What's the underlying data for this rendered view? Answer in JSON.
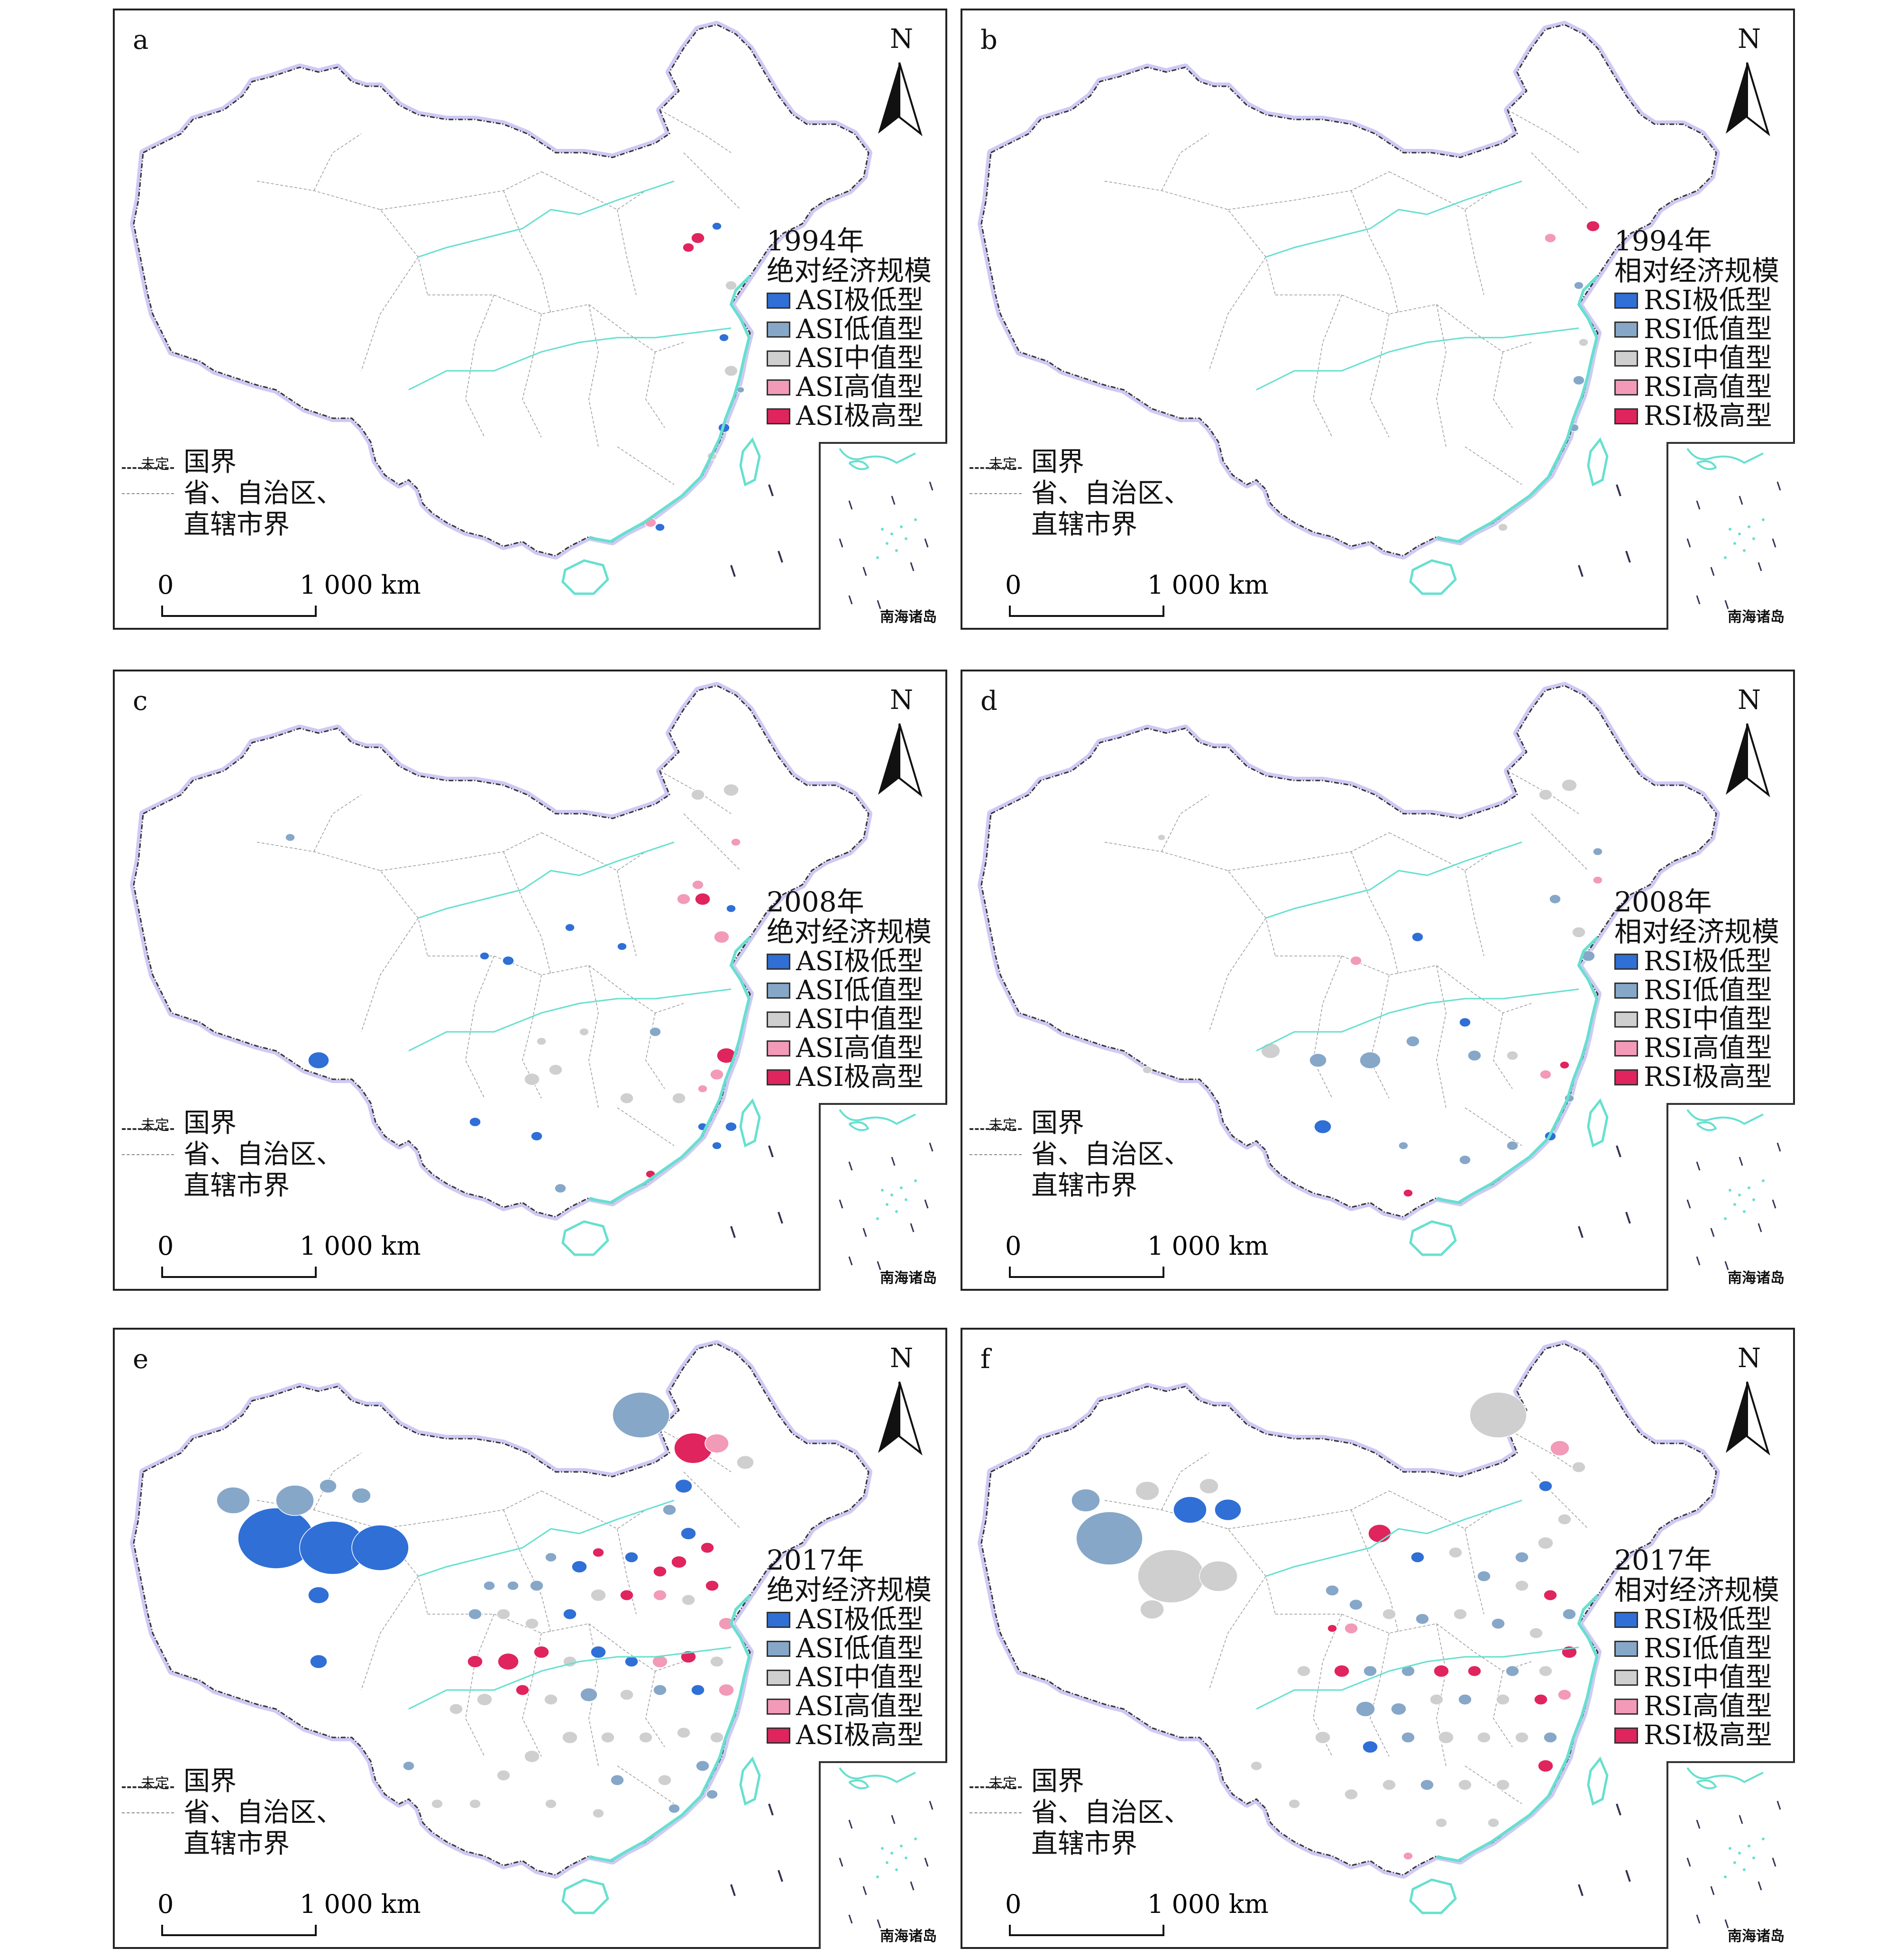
{
  "colors": {
    "very_low": "#2f6fd6",
    "low": "#86a7c8",
    "mid": "#cfcfcf",
    "high": "#f29ab8",
    "very_high": "#e0245e",
    "coast": "#66e0cf",
    "border_glow": "#b9b4f0"
  },
  "icons": {
    "north_arrow": "north-arrow-icon"
  },
  "common": {
    "north_label": "N",
    "boundary_label": "国界",
    "undetermined_label": "未定",
    "province_label_1": "省、自治区、",
    "province_label_2": "直辖市界",
    "scale_zero": "0",
    "scale_km": "1 000 km",
    "inset_label": "南海诸岛"
  },
  "panels": [
    {
      "letter": "a",
      "year": "1994年",
      "title": "绝对经济规模",
      "items": [
        "ASI极低型",
        "ASI低值型",
        "ASI中值型",
        "ASI高值型",
        "ASI极高型"
      ]
    },
    {
      "letter": "b",
      "year": "1994年",
      "title": "相对经济规模",
      "items": [
        "RSI极低型",
        "RSI低值型",
        "RSI中值型",
        "RSI高值型",
        "RSI极高型"
      ]
    },
    {
      "letter": "c",
      "year": "2008年",
      "title": "绝对经济规模",
      "items": [
        "ASI极低型",
        "ASI低值型",
        "ASI中值型",
        "ASI高值型",
        "ASI极高型"
      ]
    },
    {
      "letter": "d",
      "year": "2008年",
      "title": "相对经济规模",
      "items": [
        "RSI极低型",
        "RSI低值型",
        "RSI中值型",
        "RSI高值型",
        "RSI极高型"
      ]
    },
    {
      "letter": "e",
      "year": "2017年",
      "title": "绝对经济规模",
      "items": [
        "ASI极低型",
        "ASI低值型",
        "ASI中值型",
        "ASI高值型",
        "ASI极高型"
      ]
    },
    {
      "letter": "f",
      "year": "2017年",
      "title": "相对经济规模",
      "items": [
        "RSI极低型",
        "RSI低值型",
        "RSI中值型",
        "RSI高值型",
        "RSI极高型"
      ]
    }
  ]
}
